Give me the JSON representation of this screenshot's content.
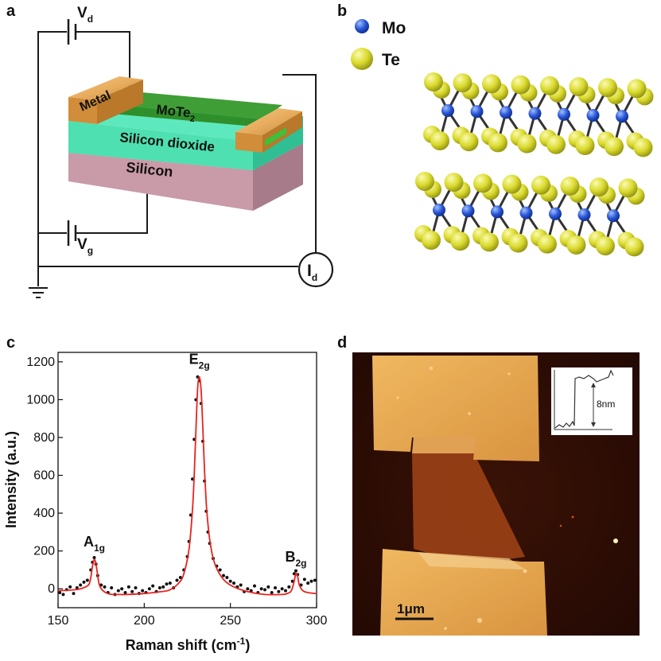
{
  "panels": {
    "a": "a",
    "b": "b",
    "c": "c",
    "d": "d"
  },
  "device": {
    "vd_main": "V",
    "vd_sub": "d",
    "vg_main": "V",
    "vg_sub": "g",
    "id_main": "I",
    "id_sub": "d",
    "metal_label": "Metal",
    "channel_main": "MoTe",
    "channel_sub": "2",
    "oxide_label": "Silicon dioxide",
    "substrate_label": "Silicon"
  },
  "crystal": {
    "legend": [
      {
        "label": "Mo",
        "color": "#2a55d6"
      },
      {
        "label": "Te",
        "color": "#d8d82a"
      }
    ]
  },
  "chart_data": {
    "type": "scatter",
    "title": "",
    "xlabel_main": "Raman shift (cm",
    "xlabel_sup": "-1",
    "xlabel_end": ")",
    "ylabel": "Intensity (a.u.)",
    "xlim": [
      150,
      300
    ],
    "ylim": [
      -100,
      1250
    ],
    "xticks": [
      "150",
      "200",
      "250",
      "300"
    ],
    "yticks": [
      "0",
      "200",
      "400",
      "600",
      "800",
      "1000",
      "1200"
    ],
    "series": [
      {
        "name": "data",
        "style": "points",
        "x": [
          151,
          153,
          155,
          157,
          159,
          161,
          163,
          165,
          167,
          169,
          170,
          171,
          172,
          173,
          175,
          177,
          179,
          181,
          183,
          185,
          187,
          189,
          191,
          193,
          195,
          197,
          199,
          201,
          203,
          205,
          207,
          209,
          211,
          213,
          215,
          217,
          219,
          221,
          223,
          225,
          226,
          227,
          228,
          229,
          230,
          231,
          232,
          233,
          234,
          235,
          236,
          237,
          238,
          240,
          242,
          244,
          246,
          248,
          250,
          252,
          254,
          256,
          258,
          260,
          262,
          264,
          266,
          268,
          270,
          272,
          274,
          276,
          278,
          280,
          282,
          284,
          286,
          287,
          288,
          289,
          291,
          293,
          295,
          297,
          299
        ],
        "y": [
          -20,
          -30,
          -5,
          10,
          -25,
          5,
          20,
          35,
          45,
          100,
          140,
          165,
          130,
          70,
          20,
          10,
          -20,
          5,
          -30,
          -10,
          0,
          -20,
          10,
          -15,
          5,
          -25,
          -10,
          -20,
          0,
          15,
          -15,
          5,
          10,
          25,
          30,
          5,
          45,
          60,
          100,
          170,
          250,
          390,
          580,
          790,
          1000,
          1120,
          1100,
          980,
          780,
          570,
          410,
          300,
          240,
          160,
          120,
          100,
          70,
          60,
          40,
          30,
          10,
          20,
          -15,
          0,
          -10,
          15,
          -20,
          0,
          -5,
          10,
          -20,
          5,
          -15,
          0,
          -10,
          10,
          40,
          80,
          95,
          75,
          20,
          50,
          30,
          40,
          45
        ]
      },
      {
        "name": "fit",
        "style": "line",
        "color": "#e8231f",
        "x": [
          150,
          155,
          160,
          163,
          166,
          168,
          169,
          170,
          171,
          172,
          173,
          174,
          176,
          180,
          185,
          190,
          200,
          210,
          215,
          220,
          223,
          226,
          228,
          229,
          230,
          231,
          232,
          233,
          234,
          235,
          236,
          237,
          238,
          240,
          243,
          247,
          252,
          260,
          270,
          280,
          283,
          285,
          286,
          287,
          288,
          289,
          290,
          292,
          295,
          300
        ],
        "y": [
          -10,
          -8,
          -5,
          0,
          10,
          25,
          60,
          120,
          155,
          130,
          70,
          20,
          -10,
          -28,
          -30,
          -30,
          -25,
          -15,
          -5,
          30,
          80,
          210,
          420,
          600,
          840,
          1060,
          1120,
          1050,
          850,
          620,
          450,
          340,
          260,
          160,
          90,
          40,
          10,
          -15,
          -30,
          -30,
          -25,
          -15,
          5,
          40,
          80,
          65,
          20,
          -10,
          -20,
          -25
        ]
      }
    ],
    "annotations": [
      {
        "main": "A",
        "sub": "1g",
        "x": 171,
        "y": 165
      },
      {
        "main": "E",
        "sub": "2g",
        "x": 232,
        "y": 1130
      },
      {
        "main": "B",
        "sub": "2g",
        "x": 288,
        "y": 85
      }
    ]
  },
  "afm": {
    "scale_bar": "1μm",
    "step_height": "8nm"
  }
}
